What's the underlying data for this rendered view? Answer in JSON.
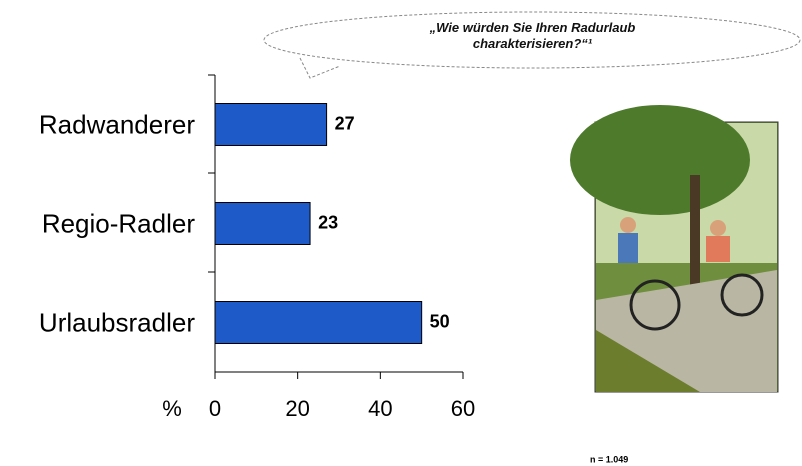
{
  "chart_data": {
    "type": "bar",
    "orientation": "horizontal",
    "title": "„Wie würden Sie Ihren Radurlaub charakterisieren?“¹",
    "categories": [
      "Radwanderer",
      "Regio-Radler",
      "Urlaubsradler"
    ],
    "values": [
      27,
      23,
      50
    ],
    "color": "#1f5bc8",
    "xlim": [
      0,
      60
    ],
    "xticks": [
      0,
      20,
      40,
      60
    ],
    "x_label": "%",
    "note": "n = 1.049"
  }
}
